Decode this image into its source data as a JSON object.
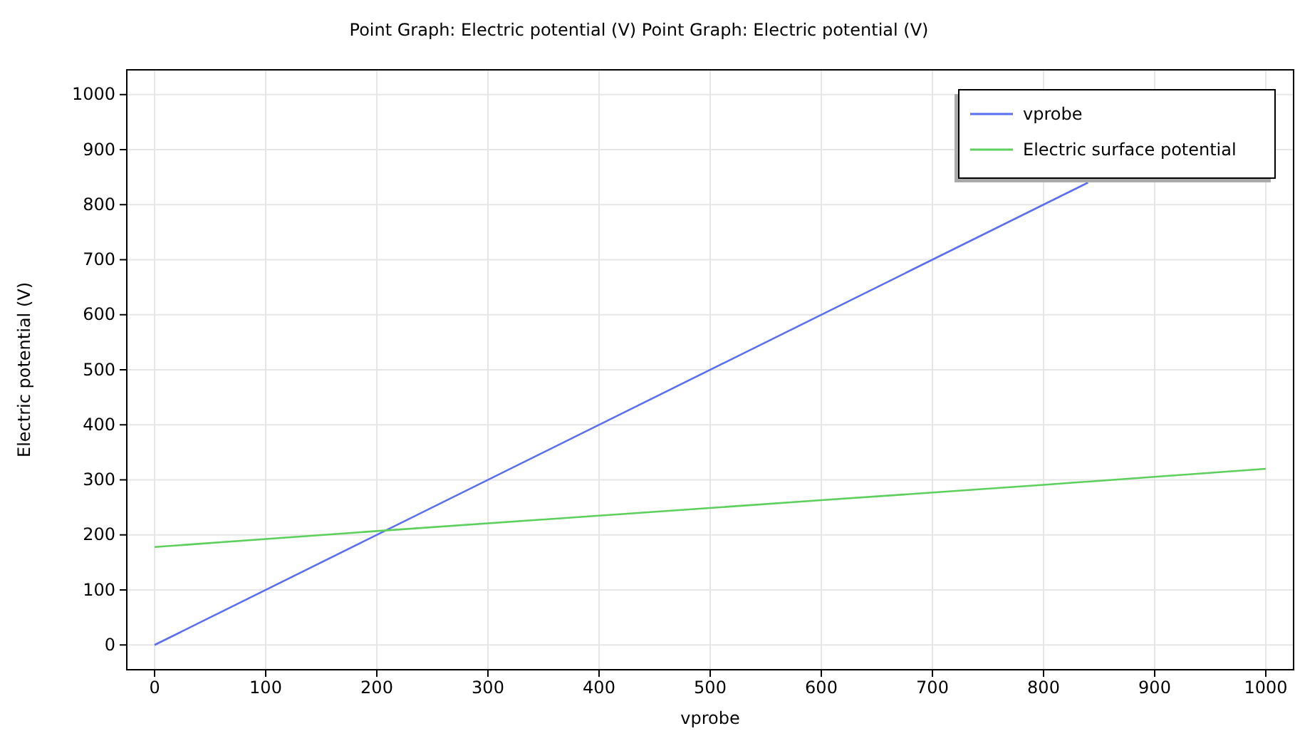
{
  "chart_data": {
    "type": "line",
    "title": "Point Graph: Electric potential (V)  Point Graph: Electric potential (V)",
    "xlabel": "vprobe",
    "ylabel": "Electric potential (V)",
    "series": [
      {
        "name": "vprobe",
        "color": "#5a6ef0",
        "x": [
          0,
          840
        ],
        "values": [
          0,
          840
        ]
      },
      {
        "name": "Electric surface potential",
        "color": "#5ccf5c",
        "x": [
          0,
          200,
          400,
          600,
          800,
          1000
        ],
        "values": [
          178,
          207,
          235,
          263,
          291,
          320
        ]
      }
    ],
    "xlim": [
      -25,
      1025
    ],
    "ylim": [
      -45,
      1045
    ],
    "xticks": [
      0,
      100,
      200,
      300,
      400,
      500,
      600,
      700,
      800,
      900,
      1000
    ],
    "yticks": [
      0,
      100,
      200,
      300,
      400,
      500,
      600,
      700,
      800,
      900,
      1000
    ],
    "grid": true,
    "legend": "top right"
  }
}
